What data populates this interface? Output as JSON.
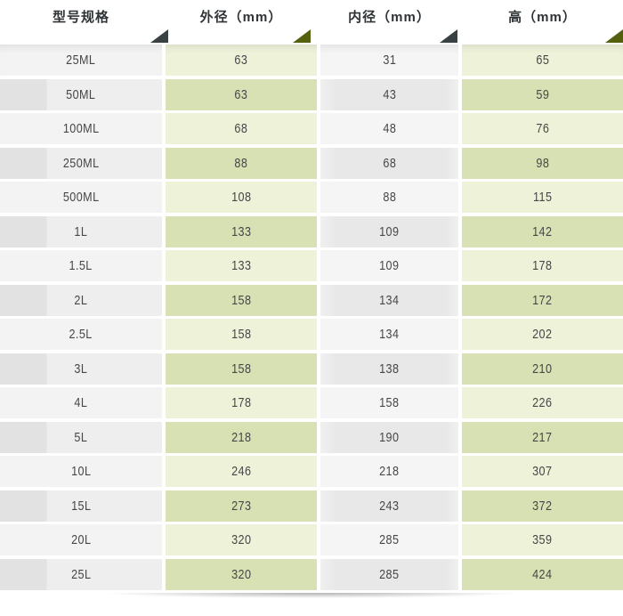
{
  "chart_data": {
    "type": "table",
    "title": "",
    "columns": [
      "型号规格",
      "外径（mm）",
      "内径（mm）",
      "高（mm）"
    ],
    "rows": [
      [
        "25ML",
        63,
        31,
        65
      ],
      [
        "50ML",
        63,
        43,
        59
      ],
      [
        "100ML",
        68,
        48,
        76
      ],
      [
        "250ML",
        88,
        68,
        98
      ],
      [
        "500ML",
        108,
        88,
        115
      ],
      [
        "1L",
        133,
        109,
        142
      ],
      [
        "1.5L",
        133,
        109,
        178
      ],
      [
        "2L",
        158,
        134,
        172
      ],
      [
        "2.5L",
        158,
        134,
        202
      ],
      [
        "3L",
        158,
        138,
        210
      ],
      [
        "4L",
        178,
        158,
        226
      ],
      [
        "5L",
        218,
        190,
        217
      ],
      [
        "10L",
        246,
        218,
        307
      ],
      [
        "15L",
        273,
        243,
        372
      ],
      [
        "20L",
        320,
        285,
        359
      ],
      [
        "25L",
        320,
        285,
        424
      ]
    ]
  },
  "table": {
    "headers": [
      {
        "label": "型号规格",
        "sort_icon": "sort-triangle",
        "icon_color": "#3a4144"
      },
      {
        "label": "外径（mm）",
        "sort_icon": "sort-triangle",
        "icon_color": "#55600f"
      },
      {
        "label": "内径（mm）",
        "sort_icon": "sort-triangle",
        "icon_color": "#3a4144"
      },
      {
        "label": "高（mm）",
        "sort_icon": "sort-triangle",
        "icon_color": "#55600f"
      }
    ],
    "rows": [
      {
        "model": "25ML",
        "outer": "63",
        "inner": "31",
        "height": "65"
      },
      {
        "model": "50ML",
        "outer": "63",
        "inner": "43",
        "height": "59"
      },
      {
        "model": "100ML",
        "outer": "68",
        "inner": "48",
        "height": "76"
      },
      {
        "model": "250ML",
        "outer": "88",
        "inner": "68",
        "height": "98"
      },
      {
        "model": "500ML",
        "outer": "108",
        "inner": "88",
        "height": "115"
      },
      {
        "model": "1L",
        "outer": "133",
        "inner": "109",
        "height": "142"
      },
      {
        "model": "1.5L",
        "outer": "133",
        "inner": "109",
        "height": "178"
      },
      {
        "model": "2L",
        "outer": "158",
        "inner": "134",
        "height": "172"
      },
      {
        "model": "2.5L",
        "outer": "158",
        "inner": "134",
        "height": "202"
      },
      {
        "model": "3L",
        "outer": "158",
        "inner": "138",
        "height": "210"
      },
      {
        "model": "4L",
        "outer": "178",
        "inner": "158",
        "height": "226"
      },
      {
        "model": "5L",
        "outer": "218",
        "inner": "190",
        "height": "217"
      },
      {
        "model": "10L",
        "outer": "246",
        "inner": "218",
        "height": "307"
      },
      {
        "model": "15L",
        "outer": "273",
        "inner": "243",
        "height": "372"
      },
      {
        "model": "20L",
        "outer": "320",
        "inner": "285",
        "height": "359"
      },
      {
        "model": "25L",
        "outer": "320",
        "inner": "285",
        "height": "424"
      }
    ]
  },
  "colors": {
    "green_row_light": "#edf2d9",
    "green_row_dark": "#d7e1b3",
    "gray_row_light": "#f4f4f4",
    "gray_row_dark": "#e9e9e9",
    "gray_left_strip": "#e2e2e2",
    "header_text": "#2e3336",
    "cell_text": "#474747",
    "triangle_dark": "#3a4144",
    "triangle_olive": "#55600f"
  }
}
